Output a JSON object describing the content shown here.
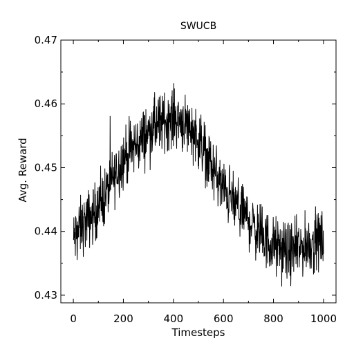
{
  "chart_data": {
    "type": "line",
    "title": "SWUCB",
    "xlabel": "Timesteps",
    "ylabel": "Avg. Reward",
    "xlim": [
      -50,
      1050
    ],
    "ylim": [
      0.4288,
      0.47
    ],
    "xticks": [
      0,
      200,
      400,
      600,
      800,
      1000
    ],
    "yticks": [
      0.43,
      0.44,
      0.45,
      0.46,
      0.47
    ],
    "xtick_labels": [
      "0",
      "200",
      "400",
      "600",
      "800",
      "1000"
    ],
    "ytick_labels": [
      "0.43",
      "0.44",
      "0.45",
      "0.46",
      "0.47"
    ],
    "grid": false,
    "legend": "none",
    "line_color": "#000000",
    "series": [
      {
        "x": [
          0,
          25,
          50,
          75,
          100,
          125,
          150,
          175,
          200,
          225,
          250,
          275,
          300,
          325,
          350,
          375,
          400,
          425,
          450,
          475,
          500,
          525,
          550,
          575,
          600,
          625,
          650,
          675,
          700,
          725,
          750,
          775,
          800,
          825,
          850,
          875,
          900,
          925,
          950,
          975,
          1000
        ],
        "y": [
          0.4385,
          0.4405,
          0.4415,
          0.4425,
          0.4435,
          0.4455,
          0.4475,
          0.4495,
          0.4515,
          0.4525,
          0.4535,
          0.4545,
          0.4555,
          0.4565,
          0.457,
          0.4575,
          0.458,
          0.4575,
          0.457,
          0.456,
          0.4545,
          0.4525,
          0.4505,
          0.4485,
          0.4465,
          0.4455,
          0.444,
          0.443,
          0.442,
          0.4405,
          0.4395,
          0.4385,
          0.4378,
          0.4372,
          0.4368,
          0.4368,
          0.4372,
          0.4378,
          0.4382,
          0.4385,
          0.4388
        ]
      }
    ]
  }
}
